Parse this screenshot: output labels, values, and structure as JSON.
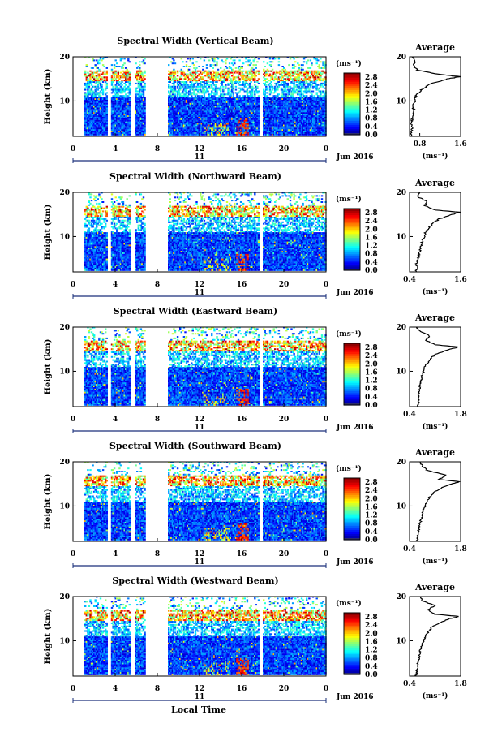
{
  "figure": {
    "xlabel": "Local Time",
    "date_label": "Jun 2016",
    "day_label": "11"
  },
  "chart_data": [
    {
      "type": "heatmap",
      "title": "Spectral Width (Vertical Beam)",
      "ylabel": "Height (km)",
      "x_ticks": [
        "0",
        "4",
        "8",
        "12",
        "16",
        "20",
        "0"
      ],
      "y_ticks": [
        "10",
        "20"
      ],
      "xlim": [
        0,
        24
      ],
      "ylim": [
        2,
        20
      ],
      "colorbar": {
        "unit": "(ms⁻¹)",
        "ticks": [
          "0.0",
          "0.4",
          "0.8",
          "1.2",
          "1.6",
          "2.0",
          "2.4",
          "2.8"
        ],
        "range": [
          0,
          3.0
        ]
      },
      "data_gaps_hours": [
        [
          0,
          1.0
        ],
        [
          3.2,
          3.5
        ],
        [
          5.3,
          5.8
        ],
        [
          6.8,
          9.0
        ],
        [
          17.6,
          17.9
        ]
      ],
      "profile": {
        "title": "Average",
        "x_ticks": [
          "0.8",
          "1.6"
        ],
        "xlim": [
          0.6,
          1.6
        ],
        "xlabel": "(ms⁻¹)",
        "height_km": [
          2,
          3,
          4,
          5,
          6,
          7,
          8,
          9,
          10,
          11,
          12,
          13,
          14,
          15,
          15.5,
          16,
          17,
          18,
          19,
          20
        ],
        "values": [
          0.62,
          0.64,
          0.65,
          0.63,
          0.65,
          0.66,
          0.68,
          0.67,
          0.7,
          0.72,
          0.78,
          0.88,
          1.05,
          1.35,
          1.58,
          1.2,
          0.75,
          0.68,
          0.7,
          0.65
        ]
      }
    },
    {
      "type": "heatmap",
      "title": "Spectral Width (Northward Beam)",
      "ylabel": "Height (km)",
      "x_ticks": [
        "0",
        "4",
        "8",
        "12",
        "16",
        "20",
        "0"
      ],
      "y_ticks": [
        "10",
        "20"
      ],
      "xlim": [
        0,
        24
      ],
      "ylim": [
        2,
        20
      ],
      "colorbar": {
        "unit": "(ms⁻¹)",
        "ticks": [
          "0.0",
          "0.4",
          "0.8",
          "1.2",
          "1.6",
          "2.0",
          "2.4",
          "2.8"
        ],
        "range": [
          0,
          3.0
        ]
      },
      "data_gaps_hours": [
        [
          0,
          1.0
        ],
        [
          3.2,
          3.5
        ],
        [
          5.3,
          5.8
        ],
        [
          6.8,
          9.0
        ],
        [
          17.6,
          17.9
        ]
      ],
      "profile": {
        "title": "Average",
        "x_ticks": [
          "0.4",
          "1.6"
        ],
        "xlim": [
          0.4,
          1.6
        ],
        "xlabel": "(ms⁻¹)",
        "height_km": [
          2,
          3,
          4,
          5,
          6,
          7,
          8,
          9,
          10,
          11,
          12,
          13,
          14,
          15,
          15.5,
          16,
          17,
          18,
          19,
          20
        ],
        "values": [
          0.55,
          0.58,
          0.56,
          0.6,
          0.62,
          0.65,
          0.68,
          0.7,
          0.74,
          0.78,
          0.85,
          0.95,
          1.1,
          1.4,
          1.58,
          1.0,
          0.75,
          0.8,
          0.6,
          0.62
        ]
      }
    },
    {
      "type": "heatmap",
      "title": "Spectral Width (Eastward Beam)",
      "ylabel": "Height (km)",
      "x_ticks": [
        "0",
        "4",
        "8",
        "12",
        "16",
        "20",
        "0"
      ],
      "y_ticks": [
        "10",
        "20"
      ],
      "xlim": [
        0,
        24
      ],
      "ylim": [
        2,
        20
      ],
      "colorbar": {
        "unit": "(ms⁻¹)",
        "ticks": [
          "0.0",
          "0.4",
          "0.8",
          "1.2",
          "1.6",
          "2.0",
          "2.4",
          "2.8"
        ],
        "range": [
          0,
          3.0
        ]
      },
      "data_gaps_hours": [
        [
          0,
          1.0
        ],
        [
          3.2,
          3.5
        ],
        [
          5.3,
          5.8
        ],
        [
          6.8,
          9.0
        ],
        [
          17.6,
          17.9
        ]
      ],
      "profile": {
        "title": "Average",
        "x_ticks": [
          "0.4",
          "1.8"
        ],
        "xlim": [
          0.4,
          1.8
        ],
        "xlabel": "(ms⁻¹)",
        "height_km": [
          2,
          3,
          4,
          5,
          6,
          7,
          8,
          9,
          10,
          11,
          12,
          13,
          14,
          15,
          15.5,
          16,
          17,
          18,
          19,
          20
        ],
        "values": [
          0.62,
          0.64,
          0.66,
          0.65,
          0.67,
          0.7,
          0.72,
          0.74,
          0.78,
          0.82,
          0.9,
          0.98,
          1.15,
          1.5,
          1.75,
          1.1,
          0.85,
          0.95,
          0.7,
          0.6
        ]
      }
    },
    {
      "type": "heatmap",
      "title": "Spectral Width (Southward Beam)",
      "ylabel": "Height (km)",
      "x_ticks": [
        "0",
        "4",
        "8",
        "12",
        "16",
        "20",
        "0"
      ],
      "y_ticks": [
        "10",
        "20"
      ],
      "xlim": [
        0,
        24
      ],
      "ylim": [
        2,
        20
      ],
      "colorbar": {
        "unit": "(ms⁻¹)",
        "ticks": [
          "0.0",
          "0.4",
          "0.8",
          "1.2",
          "1.6",
          "2.0",
          "2.4",
          "2.8"
        ],
        "range": [
          0,
          3.0
        ]
      },
      "data_gaps_hours": [
        [
          0,
          1.0
        ],
        [
          3.2,
          3.5
        ],
        [
          5.3,
          5.8
        ],
        [
          6.8,
          9.0
        ],
        [
          17.6,
          17.9
        ]
      ],
      "profile": {
        "title": "Average",
        "x_ticks": [
          "0.4",
          "1.8"
        ],
        "xlim": [
          0.4,
          1.8
        ],
        "xlabel": "(ms⁻¹)",
        "height_km": [
          2,
          3,
          4,
          5,
          6,
          7,
          8,
          9,
          10,
          11,
          12,
          13,
          14,
          15,
          15.5,
          16,
          17,
          18,
          19,
          20
        ],
        "values": [
          0.6,
          0.63,
          0.64,
          0.66,
          0.68,
          0.72,
          0.75,
          0.78,
          0.82,
          0.88,
          0.95,
          1.05,
          1.25,
          1.55,
          1.78,
          1.2,
          1.4,
          0.9,
          0.75,
          0.7
        ]
      }
    },
    {
      "type": "heatmap",
      "title": "Spectral Width (Westward Beam)",
      "ylabel": "Height (km)",
      "x_ticks": [
        "0",
        "4",
        "8",
        "12",
        "16",
        "20",
        "0"
      ],
      "y_ticks": [
        "10",
        "20"
      ],
      "xlim": [
        0,
        24
      ],
      "ylim": [
        2,
        20
      ],
      "colorbar": {
        "unit": "(ms⁻¹)",
        "ticks": [
          "0.0",
          "0.4",
          "0.8",
          "1.2",
          "1.6",
          "2.0",
          "2.4",
          "2.8"
        ],
        "range": [
          0,
          3.0
        ]
      },
      "data_gaps_hours": [
        [
          0,
          1.0
        ],
        [
          3.2,
          3.5
        ],
        [
          5.3,
          5.8
        ],
        [
          6.8,
          9.0
        ],
        [
          17.6,
          17.9
        ]
      ],
      "profile": {
        "title": "Average",
        "x_ticks": [
          "0.4",
          "1.8"
        ],
        "xlim": [
          0.4,
          1.8
        ],
        "xlabel": "(ms⁻¹)",
        "height_km": [
          2,
          3,
          4,
          5,
          6,
          7,
          8,
          9,
          10,
          11,
          12,
          13,
          14,
          15,
          15.5,
          16,
          17,
          18,
          19,
          20
        ],
        "values": [
          0.58,
          0.6,
          0.62,
          0.63,
          0.66,
          0.68,
          0.7,
          0.74,
          0.78,
          0.84,
          0.92,
          1.0,
          1.2,
          1.5,
          1.76,
          1.1,
          0.9,
          1.1,
          0.75,
          0.7
        ]
      }
    }
  ]
}
